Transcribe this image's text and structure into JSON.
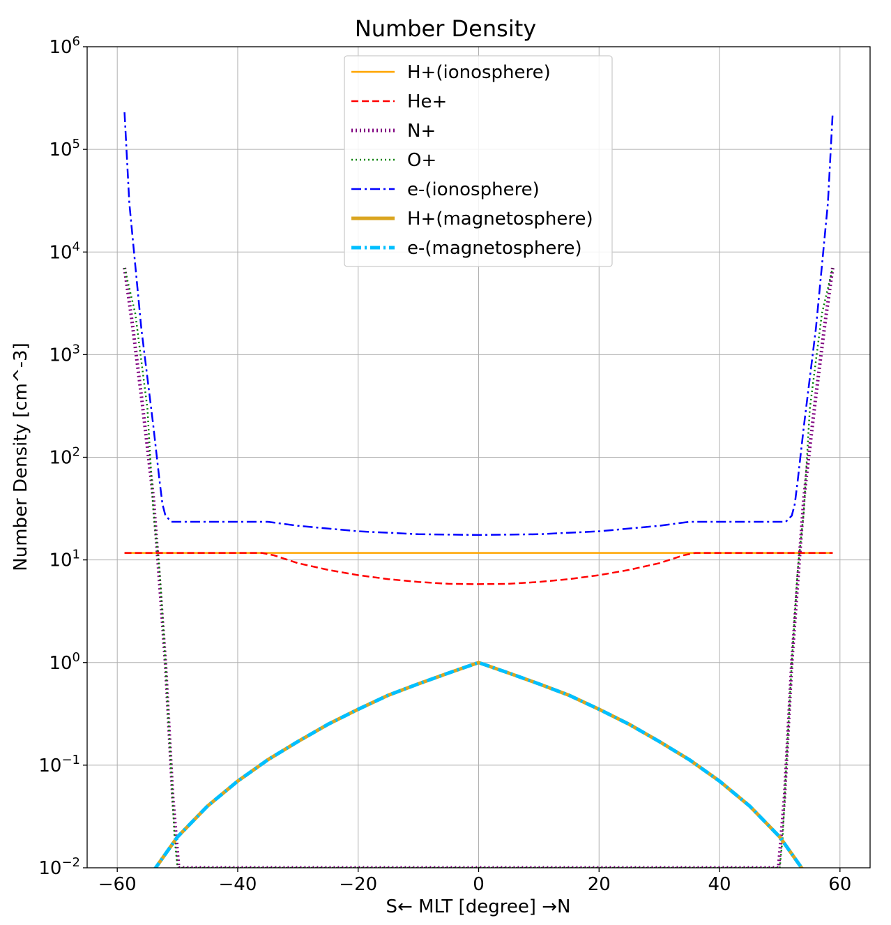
{
  "chart_data": {
    "type": "line",
    "title": "Number Density",
    "xlabel": "S← MLT [degree] →N",
    "ylabel": "Number Density [cm^-3]",
    "xlim": [
      -65,
      65
    ],
    "ylim": [
      0.01,
      1000000
    ],
    "yscale": "log",
    "grid": true,
    "legend_loc": "upper center",
    "x_ticks": [
      {
        "value": -60,
        "label": "−60"
      },
      {
        "value": -40,
        "label": "−40"
      },
      {
        "value": -20,
        "label": "−20"
      },
      {
        "value": 0,
        "label": "0"
      },
      {
        "value": 20,
        "label": "20"
      },
      {
        "value": 40,
        "label": "40"
      },
      {
        "value": 60,
        "label": "60"
      }
    ],
    "y_ticks": [
      {
        "value": 0.01,
        "base": "10",
        "exp": "−2"
      },
      {
        "value": 0.1,
        "base": "10",
        "exp": "−1"
      },
      {
        "value": 1,
        "base": "10",
        "exp": "0"
      },
      {
        "value": 10,
        "base": "10",
        "exp": "1"
      },
      {
        "value": 100,
        "base": "10",
        "exp": "2"
      },
      {
        "value": 1000,
        "base": "10",
        "exp": "3"
      },
      {
        "value": 10000,
        "base": "10",
        "exp": "4"
      },
      {
        "value": 100000,
        "base": "10",
        "exp": "5"
      },
      {
        "value": 1000000,
        "base": "10",
        "exp": "6"
      }
    ],
    "series": [
      {
        "name": "H+(ionosphere)",
        "color": "#ffa500",
        "style": "solid",
        "width": 2.5,
        "x": [
          -58.8,
          -40,
          -20,
          0,
          20,
          40,
          58.8
        ],
        "y": [
          11.7,
          11.7,
          11.7,
          11.7,
          11.7,
          11.7,
          11.7
        ]
      },
      {
        "name": "He+",
        "color": "#ff0000",
        "style": "dashed",
        "width": 2.5,
        "x": [
          -58.8,
          -36,
          -34,
          -30,
          -25,
          -20,
          -15,
          -10,
          -5,
          0,
          5,
          10,
          15,
          20,
          25,
          30,
          34,
          36,
          58.8
        ],
        "y": [
          11.7,
          11.7,
          11.1,
          9.3,
          8.0,
          7.1,
          6.5,
          6.1,
          5.85,
          5.8,
          5.85,
          6.1,
          6.5,
          7.1,
          8.0,
          9.3,
          11.1,
          11.7,
          11.7
        ]
      },
      {
        "name": "N+",
        "color": "#800080",
        "style": "dotted",
        "width": 5,
        "x": [
          -58.8,
          -57.5,
          -56,
          -54,
          -52,
          -50.8,
          -49.8,
          49.8,
          50.8,
          52,
          54,
          56,
          57.5,
          58.8
        ],
        "y": [
          7000,
          2000,
          400,
          40,
          1,
          0.05,
          0.01,
          0.01,
          0.05,
          1,
          40,
          400,
          2000,
          7000
        ]
      },
      {
        "name": "O+",
        "color": "#008000",
        "style": "dotted",
        "width": 2.5,
        "x": [
          -58.8,
          -57,
          -55,
          -54,
          -53,
          -52,
          -51,
          -50.5,
          -50,
          50,
          50.5,
          51,
          52,
          53,
          54,
          55,
          57,
          58.8
        ],
        "y": [
          7000,
          2500,
          300,
          30,
          8,
          1,
          0.08,
          0.02,
          0.01,
          0.01,
          0.02,
          0.08,
          1,
          8,
          30,
          300,
          2500,
          7000
        ]
      },
      {
        "name": "e-(ionosphere)",
        "color": "#0000ff",
        "style": "dashdot",
        "width": 2.5,
        "x": [
          -58.8,
          -58,
          -56,
          -54,
          -53,
          -52.5,
          -52,
          -51,
          -40,
          -35,
          -30,
          -20,
          -10,
          0,
          10,
          20,
          30,
          35,
          40,
          51,
          52,
          52.5,
          53,
          54,
          56,
          58,
          58.8
        ],
        "y": [
          230000,
          30000,
          1800,
          200,
          60,
          35,
          27,
          23.5,
          23.5,
          23.5,
          21.5,
          19,
          17.8,
          17.5,
          17.8,
          19,
          21.5,
          23.5,
          23.5,
          23.5,
          27,
          35,
          60,
          200,
          1800,
          30000,
          230000
        ]
      },
      {
        "name": "H+(magnetosphere)",
        "color": "#daa520",
        "style": "solid",
        "width": 5,
        "x": [
          -54,
          -50,
          -45,
          -40,
          -35,
          -30,
          -25,
          -20,
          -15,
          -10,
          -5,
          0,
          5,
          10,
          15,
          20,
          25,
          30,
          35,
          40,
          45,
          50,
          54
        ],
        "y": [
          0.0093,
          0.02,
          0.04,
          0.07,
          0.113,
          0.17,
          0.25,
          0.35,
          0.48,
          0.62,
          0.79,
          1,
          0.79,
          0.62,
          0.48,
          0.35,
          0.25,
          0.17,
          0.113,
          0.07,
          0.04,
          0.02,
          0.0093
        ]
      },
      {
        "name": "e-(magnetosphere)",
        "color": "#00bfff",
        "style": "dashdot",
        "width": 5,
        "x": [
          -54,
          -50,
          -45,
          -40,
          -35,
          -30,
          -25,
          -20,
          -15,
          -10,
          -5,
          0,
          5,
          10,
          15,
          20,
          25,
          30,
          35,
          40,
          45,
          50,
          54
        ],
        "y": [
          0.0093,
          0.02,
          0.04,
          0.07,
          0.113,
          0.17,
          0.25,
          0.35,
          0.48,
          0.62,
          0.79,
          1,
          0.79,
          0.62,
          0.48,
          0.35,
          0.25,
          0.17,
          0.113,
          0.07,
          0.04,
          0.02,
          0.0093
        ]
      }
    ]
  }
}
